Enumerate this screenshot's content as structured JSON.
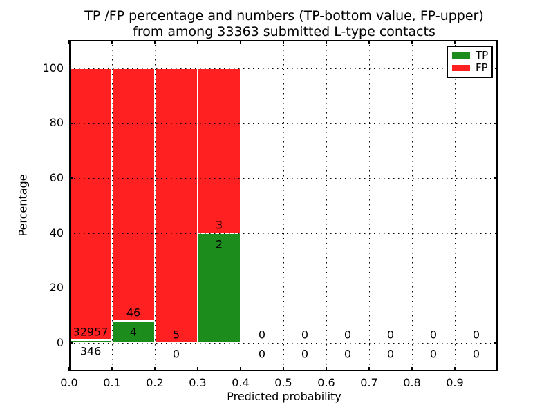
{
  "title": {
    "line1": "TP /FP percentage and numbers (TP-bottom value, FP-upper)",
    "line2": "from among 33363 submitted L-type contacts"
  },
  "axes": {
    "xlabel": "Predicted probability",
    "ylabel": "Percentage",
    "xlim": [
      0,
      1.0
    ],
    "ylim": [
      -10.3,
      110.2
    ],
    "xtick_values": [
      0.0,
      0.1,
      0.2,
      0.3,
      0.4,
      0.5,
      0.6,
      0.7,
      0.8,
      0.9
    ],
    "xtick_labels": [
      "0.0",
      "0.1",
      "0.2",
      "0.3",
      "0.4",
      "0.5",
      "0.6",
      "0.7",
      "0.8",
      "0.9"
    ],
    "ytick_values": [
      0,
      20,
      40,
      60,
      80,
      100
    ],
    "ytick_labels": [
      "0",
      "20",
      "40",
      "60",
      "80",
      "100"
    ],
    "grid": "dotted, drawn on top of bars"
  },
  "legend": {
    "position": "upper right",
    "items": [
      {
        "label": "TP",
        "color": "#1c8c1c"
      },
      {
        "label": "FP",
        "color": "#ff2121"
      }
    ]
  },
  "colors": {
    "tp_green": "#1c8c1c",
    "fp_red": "#ff2121",
    "bar_edge": "#ffffff",
    "text": "#000000",
    "background": "#ffffff"
  },
  "chart_data": {
    "type": "bar",
    "stacked": true,
    "title": "TP /FP percentage and numbers (TP-bottom value, FP-upper) from among 33363 submitted L-type contacts",
    "xlabel": "Predicted probability",
    "ylabel": "Percentage",
    "total_submitted": 33363,
    "bin_width": 0.1,
    "series_names": [
      "TP",
      "FP"
    ],
    "note": "Each bin stacks TP% (green, bottom) and FP% (red, top) summing to 100% where contacts exist; numeric labels show raw counts (TP below boundary, FP above).",
    "bins": [
      {
        "x0": 0.0,
        "x1": 0.1,
        "tp": 346,
        "fp": 32957,
        "tp_pct": 1.04,
        "fp_pct": 98.96
      },
      {
        "x0": 0.1,
        "x1": 0.2,
        "tp": 4,
        "fp": 46,
        "tp_pct": 8.0,
        "fp_pct": 92.0
      },
      {
        "x0": 0.2,
        "x1": 0.3,
        "tp": 0,
        "fp": 5,
        "tp_pct": 0.0,
        "fp_pct": 100.0
      },
      {
        "x0": 0.3,
        "x1": 0.4,
        "tp": 2,
        "fp": 3,
        "tp_pct": 40.0,
        "fp_pct": 60.0
      },
      {
        "x0": 0.4,
        "x1": 0.5,
        "tp": 0,
        "fp": 0,
        "tp_pct": 0.0,
        "fp_pct": 0.0
      },
      {
        "x0": 0.5,
        "x1": 0.6,
        "tp": 0,
        "fp": 0,
        "tp_pct": 0.0,
        "fp_pct": 0.0
      },
      {
        "x0": 0.6,
        "x1": 0.7,
        "tp": 0,
        "fp": 0,
        "tp_pct": 0.0,
        "fp_pct": 0.0
      },
      {
        "x0": 0.7,
        "x1": 0.8,
        "tp": 0,
        "fp": 0,
        "tp_pct": 0.0,
        "fp_pct": 0.0
      },
      {
        "x0": 0.8,
        "x1": 0.9,
        "tp": 0,
        "fp": 0,
        "tp_pct": 0.0,
        "fp_pct": 0.0
      },
      {
        "x0": 0.9,
        "x1": 1.0,
        "tp": 0,
        "fp": 0,
        "tp_pct": 0.0,
        "fp_pct": 0.0
      }
    ],
    "label_offsets_pct": {
      "fp_above_boundary": 3,
      "tp_below_boundary": -4
    }
  }
}
